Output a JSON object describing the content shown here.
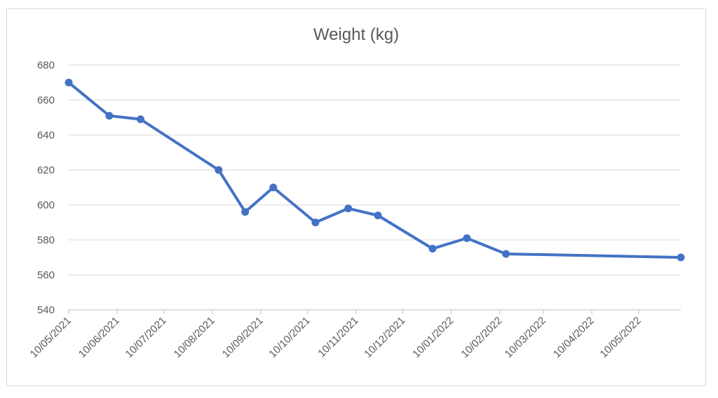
{
  "chart_data": {
    "type": "line",
    "title": "Weight (kg)",
    "xlabel": "",
    "ylabel": "",
    "ylim": [
      540,
      680
    ],
    "y_ticks": [
      540,
      560,
      580,
      600,
      620,
      640,
      660,
      680
    ],
    "grid": true,
    "x_axis_kind": "date",
    "x_domain": [
      "10/05/2021",
      "06/06/2022"
    ],
    "x_ticks": [
      "10/05/2021",
      "10/06/2021",
      "10/07/2021",
      "10/08/2021",
      "10/09/2021",
      "10/10/2021",
      "10/11/2021",
      "10/12/2021",
      "10/01/2022",
      "10/02/2022",
      "10/03/2022",
      "10/04/2022",
      "10/05/2022"
    ],
    "series": [
      {
        "color": "#4472c4",
        "points": [
          {
            "x": "10/05/2021",
            "y": 670
          },
          {
            "x": "05/06/2021",
            "y": 651
          },
          {
            "x": "25/06/2021",
            "y": 649
          },
          {
            "x": "14/08/2021",
            "y": 620
          },
          {
            "x": "31/08/2021",
            "y": 596
          },
          {
            "x": "18/09/2021",
            "y": 610
          },
          {
            "x": "15/10/2021",
            "y": 590
          },
          {
            "x": "05/11/2021",
            "y": 598
          },
          {
            "x": "24/11/2021",
            "y": 594
          },
          {
            "x": "29/12/2021",
            "y": 575
          },
          {
            "x": "20/01/2022",
            "y": 581
          },
          {
            "x": "14/02/2022",
            "y": 572
          },
          {
            "x": "06/06/2022",
            "y": 570
          }
        ]
      }
    ]
  }
}
